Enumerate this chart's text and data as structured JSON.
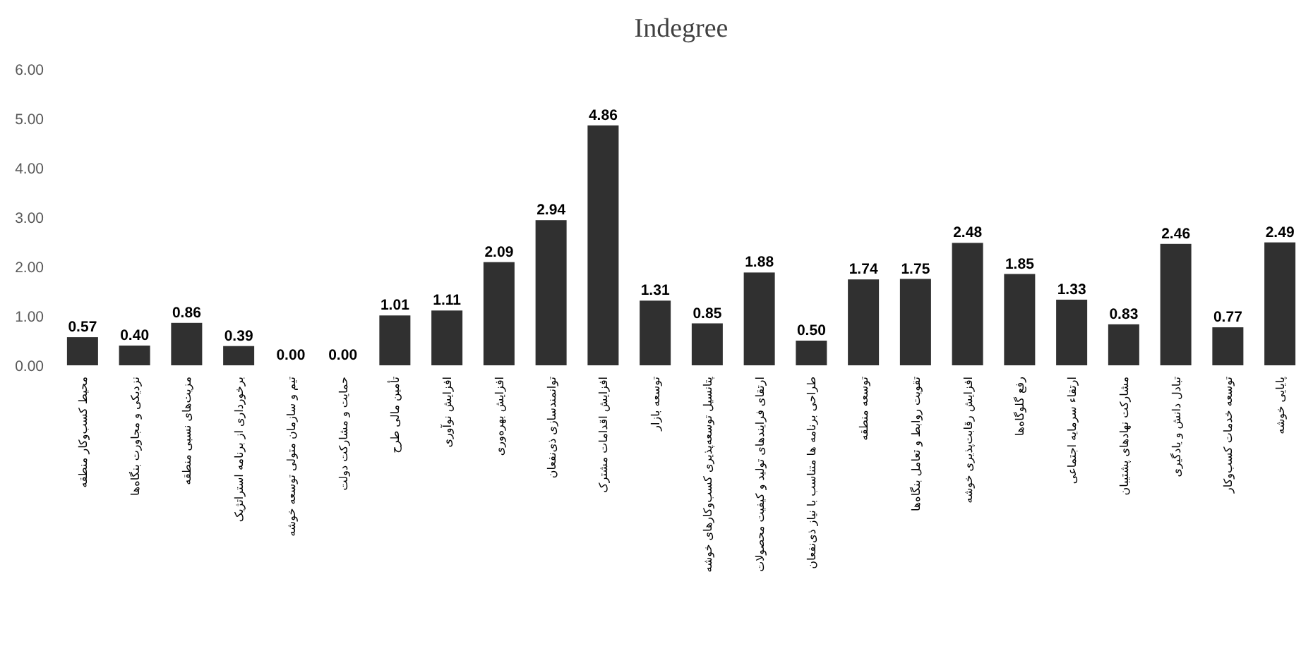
{
  "chart_data": {
    "type": "bar",
    "title": "Indegree",
    "categories": [
      "محیط کسب‌وکار منطقه",
      "نزدیکی و مجاورت بنگاه‌ها",
      "مزیت‌های نسبی منطقه",
      "برخورداری از برنامه استراتژیک",
      "تیم و سازمان متولی توسعه خوشه",
      "حمایت و مشارکت دولت",
      "تأمین مالی طرح",
      "افزایش نوآوری",
      "افزایش بهره‌وری",
      "توانمندسازی ذی‌نفعان",
      "افزایش اقدامات مشترک",
      "توسعه بازار",
      "پتانسیل توسعه‌پذیری کسب‌وکارهای خوشه",
      "ارتقای فرایندهای تولید و کیفیت محصولات",
      "طراحی برنامه ها متناسب با نیاز ذی‌نفعان",
      "توسعه منطقه",
      "تقویت روابط و تعامل بنگاه‌ها",
      "افزایش رقابت‌پذیری خوشه",
      "رفع گلوگاه‌ها",
      "ارتقاء سرمایه اجتماعی",
      "مشارکت نهادهای پشتیبان",
      "تبادل دانش و یادگیری",
      "توسعه خدمات کسب‌وکار",
      "پایایی خوشه"
    ],
    "values": [
      0.57,
      0.4,
      0.86,
      0.39,
      0.0,
      0.0,
      1.01,
      1.11,
      2.09,
      2.94,
      4.86,
      1.31,
      0.85,
      1.88,
      0.5,
      1.74,
      1.75,
      2.48,
      1.85,
      1.33,
      0.83,
      2.46,
      0.77,
      2.49
    ],
    "color": "#303030",
    "ylim": [
      0,
      6
    ],
    "yticks": [
      {
        "value": 0,
        "label": "0.00"
      },
      {
        "value": 1,
        "label": "1.00"
      },
      {
        "value": 2,
        "label": "2.00"
      },
      {
        "value": 3,
        "label": "3.00"
      },
      {
        "value": 4,
        "label": "4.00"
      },
      {
        "value": 5,
        "label": "5.00"
      },
      {
        "value": 6,
        "label": "6.00"
      }
    ],
    "value_labels": [
      "0.57",
      "0.40",
      "0.86",
      "0.39",
      "0.00",
      "0.00",
      "1.01",
      "1.11",
      "2.09",
      "2.94",
      "4.86",
      "1.31",
      "0.85",
      "1.88",
      "0.50",
      "1.74",
      "1.75",
      "2.48",
      "1.85",
      "1.33",
      "0.83",
      "2.46",
      "0.77",
      "2.49"
    ]
  }
}
